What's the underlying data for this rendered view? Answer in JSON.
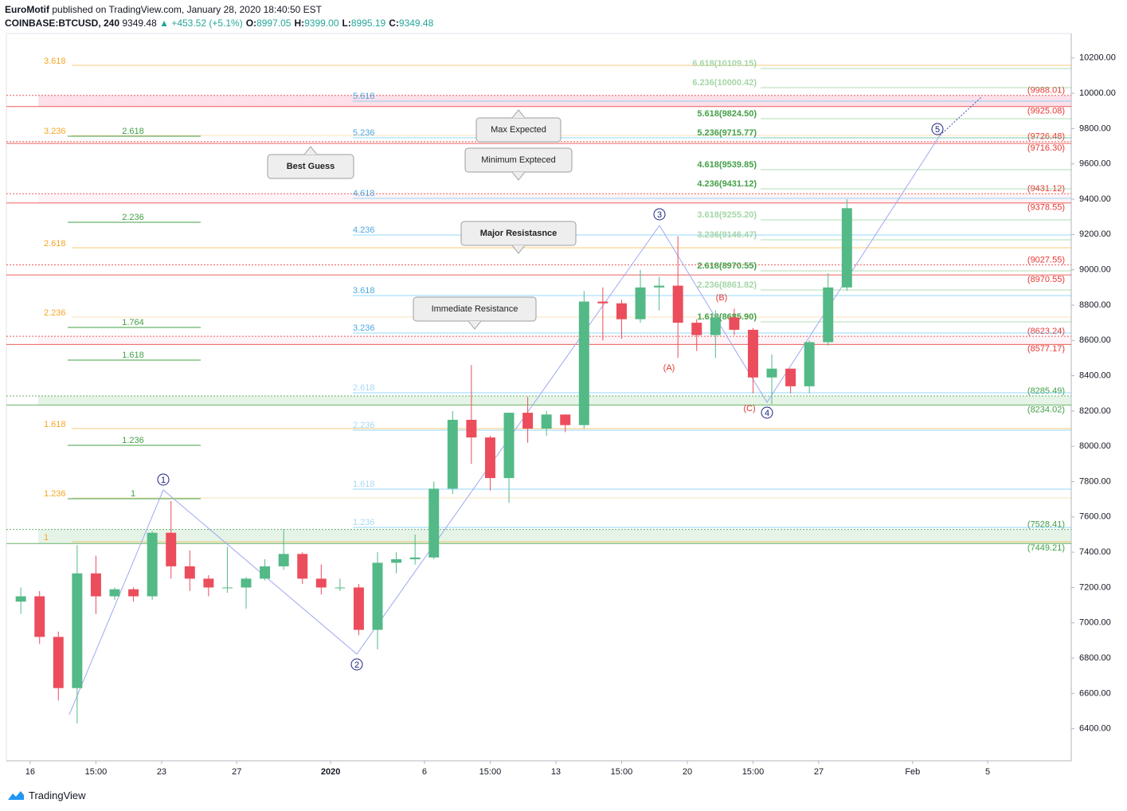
{
  "header": {
    "author": "EuroMotif",
    "published": "published on TradingView.com, January 28, 2020 18:40:50 EST",
    "symbol": "COINBASE:BTCUSD, 240",
    "last": "9349.48",
    "change": "▲ +453.52 (+5.1%)",
    "ohlc": [
      {
        "k": "O:",
        "v": "8997.05"
      },
      {
        "k": "H:",
        "v": "9399.00"
      },
      {
        "k": "L:",
        "v": "8995.19"
      },
      {
        "k": "C:",
        "v": "9349.48"
      }
    ]
  },
  "footer": "TradingView",
  "chart_data": {
    "type": "candlestick",
    "x": [
      -1,
      0,
      1,
      2,
      3,
      4,
      5,
      6,
      7,
      8,
      9,
      10,
      11,
      12,
      13,
      14,
      15,
      16,
      17,
      18,
      19,
      20,
      21,
      22,
      23,
      24,
      25,
      26,
      27,
      28,
      29,
      30,
      31,
      32,
      33,
      34,
      35,
      36,
      37,
      38,
      39,
      40,
      41,
      42,
      43
    ],
    "open": [
      7120,
      7150,
      6920,
      6630,
      7280,
      7150,
      7190,
      7150,
      7510,
      7320,
      7250,
      7200,
      7200,
      7250,
      7320,
      7390,
      7250,
      7200,
      7200,
      6960,
      7340,
      7360,
      7370,
      7760,
      8150,
      8050,
      7820,
      8190,
      8100,
      8180,
      8120,
      8820,
      8810,
      8720,
      8900,
      8910,
      8700,
      8630,
      8730,
      8660,
      8390,
      8440,
      8340,
      8590,
      8900
    ],
    "high": [
      7200,
      7180,
      6950,
      7440,
      7380,
      7200,
      7200,
      7520,
      7690,
      7410,
      7270,
      7430,
      7260,
      7360,
      7530,
      7400,
      7330,
      7250,
      7220,
      7400,
      7400,
      7500,
      7800,
      8200,
      8460,
      8060,
      8170,
      8280,
      8200,
      8180,
      8880,
      8900,
      8830,
      9000,
      8960,
      9190,
      8720,
      8770,
      8780,
      8670,
      8520,
      8440,
      8600,
      8980,
      9400
    ],
    "low": [
      7050,
      6880,
      6560,
      6430,
      7050,
      7130,
      7120,
      7130,
      7250,
      7180,
      7150,
      7170,
      7080,
      7240,
      7300,
      7220,
      7160,
      7180,
      6930,
      6850,
      7280,
      7330,
      7360,
      7730,
      7900,
      7750,
      7680,
      8020,
      8060,
      8080,
      8100,
      8600,
      8610,
      8700,
      8770,
      8500,
      8540,
      8500,
      8630,
      8300,
      8240,
      8300,
      8300,
      8570,
      8880
    ],
    "close": [
      7150,
      6920,
      6630,
      7280,
      7150,
      7190,
      7150,
      7510,
      7320,
      7250,
      7200,
      7200,
      7250,
      7320,
      7390,
      7250,
      7200,
      7200,
      6960,
      7340,
      7360,
      7370,
      7760,
      8150,
      8050,
      7820,
      8190,
      8100,
      8180,
      8120,
      8820,
      8810,
      8720,
      8900,
      8910,
      8700,
      8630,
      8730,
      8660,
      8390,
      8440,
      8340,
      8590,
      8900,
      9349
    ],
    "up_color": "#53b987",
    "down_color": "#eb4d5c",
    "xlim": [
      -1.27,
      55.45
    ],
    "xticks": [
      {
        "value": 0,
        "label": "16"
      },
      {
        "value": 3.5,
        "label": "15:00"
      },
      {
        "value": 7,
        "label": "23"
      },
      {
        "value": 11,
        "label": "27"
      },
      {
        "value": 16,
        "label": "2020"
      },
      {
        "value": 21,
        "label": "6"
      },
      {
        "value": 24.5,
        "label": "15:00"
      },
      {
        "value": 28,
        "label": "13"
      },
      {
        "value": 31.5,
        "label": "15:00"
      },
      {
        "value": 35,
        "label": "20"
      },
      {
        "value": 38.5,
        "label": "15:00"
      },
      {
        "value": 42,
        "label": "27"
      },
      {
        "value": 47,
        "label": "Feb"
      },
      {
        "value": 51,
        "label": "5"
      }
    ],
    "ylim": [
      6218,
      10339
    ],
    "yticks": [
      {
        "value": 6400,
        "label": "6400.00"
      },
      {
        "value": 6600,
        "label": "6600.00"
      },
      {
        "value": 6800,
        "label": "6800.00"
      },
      {
        "value": 7000,
        "label": "7000.00"
      },
      {
        "value": 7200,
        "label": "7200.00"
      },
      {
        "value": 7400,
        "label": "7400.00"
      },
      {
        "value": 7600,
        "label": "7600.00"
      },
      {
        "value": 7800,
        "label": "7800.00"
      },
      {
        "value": 8000,
        "label": "8000.00"
      },
      {
        "value": 8200,
        "label": "8200.00"
      },
      {
        "value": 8400,
        "label": "8400.00"
      },
      {
        "value": 8600,
        "label": "8600.00"
      },
      {
        "value": 8800,
        "label": "8800.00"
      },
      {
        "value": 9000,
        "label": "9000.00"
      },
      {
        "value": 9200,
        "label": "9200.00"
      },
      {
        "value": 9400,
        "label": "9400.00"
      },
      {
        "value": 9600,
        "label": "9600.00"
      },
      {
        "value": 9800,
        "label": "9800.00"
      },
      {
        "value": 10000,
        "label": "10000.00"
      },
      {
        "value": 10200,
        "label": "10200.00"
      }
    ],
    "levels": [
      {
        "value": 9988.01,
        "label": "(9988.01)"
      },
      {
        "value": 9925.08,
        "label": "(9925.08)"
      },
      {
        "value": 9726.48,
        "label": "(9726.48)"
      },
      {
        "value": 9716.3,
        "label": "(9716.30)"
      },
      {
        "value": 9431.12,
        "label": "(9431.12)"
      },
      {
        "value": 9378.55,
        "label": "(9378.55)"
      },
      {
        "value": 9027.55,
        "label": "(9027.55)"
      },
      {
        "value": 8970.55,
        "label": "(8970.55)"
      },
      {
        "value": 8623.24,
        "label": "(8623.24)"
      },
      {
        "value": 8577.17,
        "label": "(8577.17)"
      },
      {
        "value": 8285.49,
        "label": "(8285.49)"
      },
      {
        "value": 8234.02,
        "label": "(8234.02)"
      },
      {
        "value": 7528.41,
        "label": "(7528.41)"
      },
      {
        "value": 7449.21,
        "label": "(7449.21)"
      }
    ],
    "level_colors": [
      "#e53935",
      "#e53935",
      "#e53935",
      "#e53935",
      "#e53935",
      "#e53935",
      "#e53935",
      "#e53935",
      "#e53935",
      "#e53935",
      "#43a047",
      "#43a047",
      "#43a047",
      "#43a047"
    ],
    "fib_orange": [
      "3.618",
      "3.236",
      "2.618",
      "2.236",
      "1.618",
      "1.236",
      "1"
    ],
    "fib_green": [
      "2.618",
      "2.236",
      "1.764",
      "1.618",
      "1.236",
      "1"
    ],
    "fib_blue": [
      "5.618",
      "5.236",
      "4.618",
      "4.236",
      "3.618",
      "3.236",
      "2.618",
      "2.236",
      "1.618",
      "1.236"
    ],
    "fib_target": [
      "6.618(10109.15)",
      "6.236(10000.42)",
      "5.618(9824.50)",
      "5.236(9715.77)",
      "4.618(9539.85)",
      "4.236(9431.12)",
      "3.618(9255.20)",
      "3.236(9146.47)",
      "2.618(8970.55)",
      "2.236(8861.82)",
      "1.618(8685.90)"
    ],
    "callouts": [
      "Best Guess",
      "Max Expected",
      "Minimum Expteced",
      "Major Resistasnce",
      "Immediate Resistance"
    ],
    "waves": [
      "1",
      "2",
      "3",
      "4",
      "5"
    ],
    "corrections": [
      "(A)",
      "(B)",
      "(C)"
    ]
  }
}
